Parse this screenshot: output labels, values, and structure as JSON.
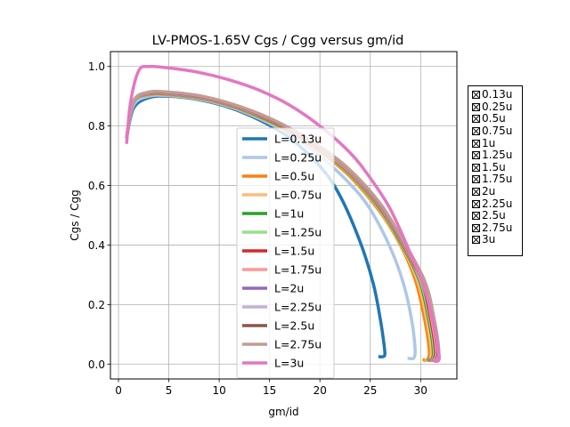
{
  "chart_data": {
    "type": "line",
    "title": "LV-PMOS-1.65V Cgs / Cgg versus gm/id",
    "xlabel": "gm/id",
    "ylabel": "Cgs / Cgg",
    "xlim": [
      -0.8,
      33.6
    ],
    "ylim": [
      -0.05,
      1.05
    ],
    "xticks": [
      0,
      5,
      10,
      15,
      20,
      25,
      30
    ],
    "yticks": [
      0.0,
      0.2,
      0.4,
      0.6,
      0.8,
      1.0
    ],
    "grid": true,
    "legend_placement": "center",
    "series": [
      {
        "name": "L=0.13u",
        "color": "#1f77b4",
        "x": [
          0.8,
          1.5,
          3,
          5,
          8,
          11,
          14,
          17,
          20,
          22,
          24,
          25.3,
          26.0,
          26.35,
          26.45,
          26.3,
          25.8
        ],
        "y": [
          0.76,
          0.86,
          0.895,
          0.9,
          0.888,
          0.862,
          0.82,
          0.76,
          0.665,
          0.565,
          0.41,
          0.27,
          0.15,
          0.07,
          0.035,
          0.025,
          0.025
        ]
      },
      {
        "name": "L=0.25u",
        "color": "#aec7e8",
        "x": [
          0.8,
          1.5,
          3,
          5,
          8,
          11,
          14,
          17,
          20,
          23,
          25,
          27,
          28.3,
          29.1,
          29.45,
          29.3,
          28.7
        ],
        "y": [
          0.76,
          0.87,
          0.9,
          0.902,
          0.89,
          0.865,
          0.825,
          0.772,
          0.7,
          0.605,
          0.52,
          0.39,
          0.27,
          0.15,
          0.05,
          0.02,
          0.02
        ]
      },
      {
        "name": "L=0.5u",
        "color": "#ff7f0e",
        "x": [
          0.8,
          1.5,
          3,
          5,
          8,
          11,
          14,
          17,
          20,
          23,
          26,
          28,
          29.5,
          30.4,
          30.85,
          30.7,
          30.2
        ],
        "y": [
          0.76,
          0.88,
          0.905,
          0.905,
          0.893,
          0.868,
          0.83,
          0.78,
          0.715,
          0.63,
          0.51,
          0.4,
          0.28,
          0.15,
          0.05,
          0.015,
          0.015
        ]
      },
      {
        "name": "L=0.75u",
        "color": "#ffbb78",
        "x": [
          0.8,
          1.5,
          3,
          5,
          8,
          11,
          14,
          17,
          20,
          23,
          26,
          28,
          29.7,
          30.6,
          31.05,
          30.9,
          30.4
        ],
        "y": [
          0.76,
          0.88,
          0.906,
          0.906,
          0.894,
          0.869,
          0.832,
          0.782,
          0.718,
          0.635,
          0.515,
          0.405,
          0.28,
          0.15,
          0.05,
          0.015,
          0.015
        ]
      },
      {
        "name": "L=1u",
        "color": "#2ca02c",
        "x": [
          0.8,
          1.5,
          3,
          5,
          8,
          11,
          14,
          17,
          20,
          23,
          26,
          28,
          29.9,
          30.8,
          31.25,
          31.1,
          30.6
        ],
        "y": [
          0.76,
          0.88,
          0.907,
          0.907,
          0.895,
          0.87,
          0.833,
          0.784,
          0.72,
          0.638,
          0.52,
          0.41,
          0.28,
          0.15,
          0.05,
          0.015,
          0.015
        ]
      },
      {
        "name": "L=1.25u",
        "color": "#98df8a",
        "x": [
          0.8,
          1.5,
          3,
          5,
          8,
          11,
          14,
          17,
          20,
          23,
          26,
          28,
          30.0,
          30.9,
          31.35,
          31.2,
          30.7
        ],
        "y": [
          0.76,
          0.881,
          0.908,
          0.908,
          0.896,
          0.871,
          0.835,
          0.786,
          0.722,
          0.641,
          0.524,
          0.415,
          0.28,
          0.15,
          0.05,
          0.015,
          0.015
        ]
      },
      {
        "name": "L=1.5u",
        "color": "#d62728",
        "x": [
          0.8,
          1.5,
          3,
          5,
          8,
          11,
          14,
          17,
          20,
          23,
          26,
          28,
          30.1,
          31.0,
          31.45,
          31.3,
          30.8
        ],
        "y": [
          0.76,
          0.882,
          0.909,
          0.909,
          0.897,
          0.872,
          0.836,
          0.787,
          0.724,
          0.643,
          0.527,
          0.418,
          0.28,
          0.15,
          0.05,
          0.015,
          0.015
        ]
      },
      {
        "name": "L=1.75u",
        "color": "#ff9896",
        "x": [
          0.8,
          1.5,
          3,
          5,
          8,
          11,
          14,
          17,
          20,
          23,
          26,
          28,
          30.2,
          31.1,
          31.55,
          31.4,
          30.9
        ],
        "y": [
          0.76,
          0.882,
          0.91,
          0.91,
          0.898,
          0.873,
          0.837,
          0.789,
          0.726,
          0.645,
          0.53,
          0.421,
          0.28,
          0.15,
          0.05,
          0.015,
          0.015
        ]
      },
      {
        "name": "L=2u",
        "color": "#9467bd",
        "x": [
          0.8,
          1.5,
          3,
          5,
          8,
          11,
          14,
          17,
          20,
          23,
          26,
          28,
          30.3,
          31.2,
          31.65,
          31.5,
          31.0
        ],
        "y": [
          0.76,
          0.883,
          0.911,
          0.911,
          0.899,
          0.874,
          0.838,
          0.79,
          0.728,
          0.648,
          0.533,
          0.424,
          0.28,
          0.15,
          0.05,
          0.015,
          0.015
        ]
      },
      {
        "name": "L=2.25u",
        "color": "#c5b0d5",
        "x": [
          0.8,
          1.5,
          3,
          5,
          8,
          11,
          14,
          17,
          20,
          23,
          26,
          28,
          30.3,
          31.25,
          31.7,
          31.55,
          31.05
        ],
        "y": [
          0.76,
          0.883,
          0.912,
          0.912,
          0.9,
          0.875,
          0.839,
          0.791,
          0.729,
          0.649,
          0.535,
          0.426,
          0.28,
          0.15,
          0.05,
          0.015,
          0.015
        ]
      },
      {
        "name": "L=2.5u",
        "color": "#8c564b",
        "x": [
          0.8,
          1.5,
          3,
          5,
          8,
          11,
          14,
          17,
          20,
          23,
          26,
          28,
          30.35,
          31.3,
          31.75,
          31.6,
          31.1
        ],
        "y": [
          0.76,
          0.884,
          0.913,
          0.913,
          0.901,
          0.876,
          0.84,
          0.792,
          0.73,
          0.651,
          0.537,
          0.428,
          0.28,
          0.15,
          0.05,
          0.015,
          0.015
        ]
      },
      {
        "name": "L=2.75u",
        "color": "#c49c94",
        "x": [
          0.8,
          1.5,
          3,
          5,
          8,
          11,
          14,
          17,
          20,
          23,
          26,
          28,
          30.4,
          31.35,
          31.8,
          31.65,
          31.15
        ],
        "y": [
          0.76,
          0.884,
          0.914,
          0.914,
          0.902,
          0.877,
          0.841,
          0.793,
          0.731,
          0.652,
          0.539,
          0.43,
          0.28,
          0.15,
          0.05,
          0.015,
          0.015
        ]
      },
      {
        "name": "L=3u",
        "color": "#e377c2",
        "x": [
          0.8,
          1.2,
          2,
          3,
          5,
          8,
          11,
          14,
          17,
          20,
          23,
          25,
          27,
          29,
          30.5,
          31.3,
          31.75,
          31.85,
          31.7,
          31.3
        ],
        "y": [
          0.74,
          0.88,
          0.985,
          1.0,
          0.995,
          0.98,
          0.955,
          0.92,
          0.87,
          0.8,
          0.71,
          0.625,
          0.52,
          0.37,
          0.24,
          0.13,
          0.05,
          0.02,
          0.01,
          0.01
        ]
      }
    ]
  },
  "check_panel": {
    "items": [
      "0.13u",
      "0.25u",
      "0.5u",
      "0.75u",
      "1u",
      "1.25u",
      "1.5u",
      "1.75u",
      "2u",
      "2.25u",
      "2.5u",
      "2.75u",
      "3u"
    ]
  }
}
